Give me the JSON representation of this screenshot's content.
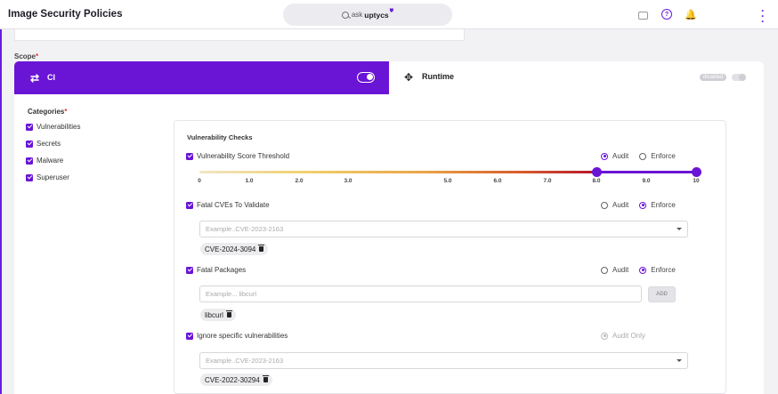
{
  "header": {
    "title": "Image Security Policies",
    "search_prefix": "ask",
    "search_brand": "uptycs",
    "icons": [
      "briefcase-icon",
      "help-icon",
      "bell-icon",
      "kebab-menu-icon"
    ]
  },
  "colors": {
    "accent": "#6a14d6",
    "alert": "#e53935"
  },
  "scope": {
    "label": "Scope",
    "required_mark": "*",
    "tabs": [
      {
        "label": "CI",
        "icon": "swap-arrows-icon",
        "selected": true,
        "enabled": true
      },
      {
        "label": "Runtime",
        "icon": "move-arrows-icon",
        "selected": false,
        "enabled": false,
        "badge": "disabled"
      }
    ]
  },
  "categories": {
    "label": "Categories",
    "required_mark": "*",
    "items": [
      {
        "label": "Vulnerabilities",
        "checked": true
      },
      {
        "label": "Secrets",
        "checked": true
      },
      {
        "label": "Malware",
        "checked": true
      },
      {
        "label": "Superuser",
        "checked": true
      }
    ]
  },
  "checks": {
    "title": "Vulnerability Checks",
    "score_threshold": {
      "label": "Vulnerability Score Threshold",
      "checked": true,
      "mode_options": [
        "Audit",
        "Enforce"
      ],
      "mode": "Audit",
      "range_min": 8.0,
      "range_max": 10,
      "ticks": [
        "0",
        "1.0",
        "2.0",
        "3.0",
        "5.0",
        "6.0",
        "7.0",
        "8.0",
        "9.0",
        "10"
      ]
    },
    "fatal_cves": {
      "label": "Fatal CVEs To Validate",
      "checked": true,
      "mode_options": [
        "Audit",
        "Enforce"
      ],
      "mode": "Enforce",
      "placeholder": "Example..CVE-2023-2163",
      "chips": [
        "CVE-2024-3094"
      ]
    },
    "fatal_packages": {
      "label": "Fatal Packages",
      "checked": true,
      "mode_options": [
        "Audit",
        "Enforce"
      ],
      "mode": "Enforce",
      "placeholder": "Example... libcurl",
      "add_label": "ADD",
      "chips": [
        "libcurl"
      ]
    },
    "ignore_vulns": {
      "label": "Ignore specific vulnerabilities",
      "checked": true,
      "mode_label": "Audit Only",
      "placeholder": "Example..CVE-2023-2163",
      "chips": [
        "CVE-2022-30294"
      ]
    }
  }
}
